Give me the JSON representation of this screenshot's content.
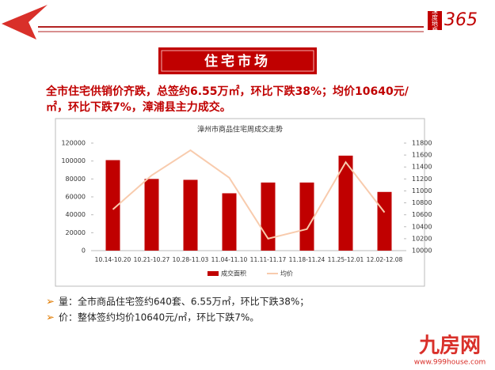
{
  "header": {
    "logo_text": "深度地产",
    "logo_number": "365",
    "section_title": "住宅市场",
    "headline": [
      "全市住宅供销价齐跌，总签约6.55万㎡，环比下跌38%；均价10640元/",
      "㎡，环比下跌7%，漳浦县主力成交。"
    ]
  },
  "chart_data": {
    "type": "bar",
    "title": "漳州市商品住宅周成交走势",
    "categories": [
      "10.14-10.20",
      "10.21-10.27",
      "10.28-11.03",
      "11.04-11.10",
      "11.11-11.17",
      "11.18-11.24",
      "11.25-12.01",
      "12.02-12.08"
    ],
    "series": [
      {
        "name": "成交面积",
        "type": "bar",
        "color": "#c00000",
        "values": [
          101000,
          80000,
          79000,
          64000,
          76000,
          76000,
          106000,
          65500
        ]
      },
      {
        "name": "均价",
        "type": "line",
        "axis": "y2",
        "color": "#f8cbad",
        "values": [
          10690,
          11260,
          11680,
          11220,
          10200,
          10360,
          11480,
          10640
        ]
      }
    ],
    "ylim": [
      0,
      120000
    ],
    "yticks": [
      0,
      20000,
      40000,
      60000,
      80000,
      100000,
      120000
    ],
    "y2lim": [
      10000,
      11800
    ],
    "y2ticks": [
      10000,
      10200,
      10400,
      10600,
      10800,
      11000,
      11200,
      11400,
      11600,
      11800
    ],
    "legend": "bottom"
  },
  "bullets": [
    "量：全市商品住宅签约640套、6.55万㎡，环比下跌38%；",
    "价：整体签约均价10640元/㎡，环比下跌7%。"
  ],
  "footer": {
    "brand": "九房网",
    "url": "www.999house.com"
  }
}
